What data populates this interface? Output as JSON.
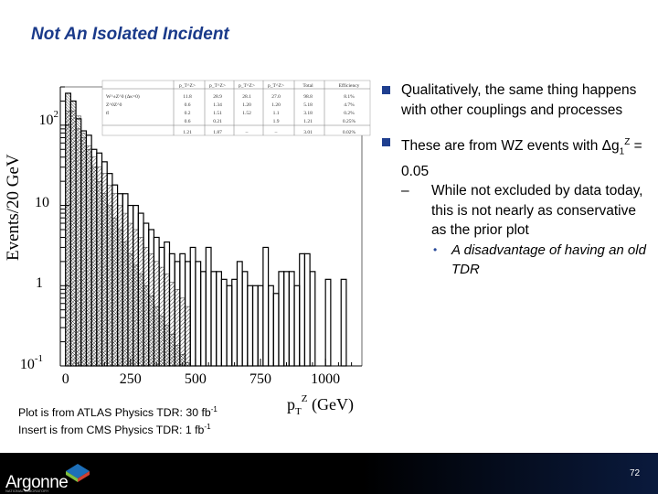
{
  "slide": {
    "title": "Not An Isolated Incident",
    "bullets": {
      "b1": "Qualitatively, the same thing happens with other couplings and processes",
      "b2_pre": "These are from WZ events with ",
      "b2_delta": "Δ",
      "b2_g": "g",
      "b2_sub": "1",
      "b2_sup": "Z",
      "b2_post": " = 0.05",
      "sub_dash": "–",
      "sub": "While not excluded by data today, this is not nearly as conservative as the prior plot",
      "subsub_dot": "•",
      "subsub": "A disadvantage of having an old TDR"
    },
    "footnote": {
      "line1": "Plot is from ATLAS Physics TDR: 30 fb",
      "line1_sup": "-1",
      "line2": "Insert is from CMS Physics TDR: 1 fb",
      "line2_sup": "-1"
    },
    "footer": {
      "logo": "Argonne",
      "logo_sub": "NATIONAL LABORATORY",
      "page": "72"
    },
    "colors": {
      "title": "#1a3a8a",
      "bullet": "#1f3f8f",
      "footer_bar": "#000000"
    }
  },
  "chart_data": {
    "type": "bar",
    "ylabel": "Events/20 GeV",
    "xlabel_main": "p",
    "xlabel_sub": "T",
    "xlabel_sup": "Z",
    "xlabel_unit": " (GeV)",
    "y_log": true,
    "ylim": [
      0.1,
      300
    ],
    "xlim": [
      -20,
      1140
    ],
    "x_ticks": [
      "0",
      "250",
      "500",
      "750",
      "1000"
    ],
    "x_tick_values": [
      0,
      250,
      500,
      750,
      1000
    ],
    "y_ticks": [
      {
        "base": "10",
        "exp": "-1",
        "value": 0.1
      },
      {
        "base": "1",
        "exp": "",
        "value": 1
      },
      {
        "base": "10",
        "exp": "",
        "value": 10
      },
      {
        "base": "10",
        "exp": "2",
        "value": 100
      }
    ],
    "bin_width": 20,
    "x_start": 0,
    "series": [
      {
        "values": [
          150,
          150,
          90,
          70,
          55,
          40,
          30,
          25,
          18,
          14,
          10,
          8,
          6,
          5,
          4,
          3,
          2.5,
          2,
          1.7,
          1.4,
          1.1,
          0.9,
          0.7,
          0.55
        ]
      },
      {
        "values": [
          250,
          200,
          130,
          80,
          50,
          30,
          20,
          14,
          10,
          7,
          5,
          3.5,
          2.5,
          1.8,
          1.4,
          1,
          0.75,
          0.55,
          0.42,
          0.32,
          0.25,
          0.18,
          0.14,
          0.11
        ]
      },
      {
        "values": [
          250,
          200,
          120,
          85,
          75,
          50,
          45,
          35,
          25,
          18,
          14,
          14,
          10,
          10,
          8,
          6,
          5,
          4,
          3,
          3.5,
          2.5,
          2,
          2.5,
          2,
          3,
          2,
          1.5,
          3,
          1.5,
          1.5,
          1.2,
          1,
          1.2,
          2,
          1.5,
          1,
          1,
          1,
          3,
          1,
          0.8,
          1.5,
          1.5,
          1.5,
          1,
          2.5,
          2.5,
          1.5,
          0.1,
          0.1,
          1.2,
          0.1,
          0.1,
          1.2,
          0.1,
          0.1,
          0.1
        ]
      }
    ],
    "insert_table": {
      "headers": [
        "",
        "p_T^Z>",
        "p_T^Z>",
        "p_T^Z>",
        "p_T^Z>",
        "Total",
        "Efficiency"
      ],
      "rows": [
        [
          "W^±Z^0 (Δκ=0)",
          "11.8",
          "28.9",
          "28.1",
          "27.0",
          "98.8",
          "8.1%"
        ],
        [
          "Z^0Z^0",
          "0.6",
          "1.34",
          "1.20",
          "1.20",
          "5.18",
          "4.7%"
        ],
        [
          "tt̄",
          "0.2",
          "1.51",
          "1.52",
          "1.1",
          "3.18",
          "0.2%"
        ],
        [
          "",
          "0.6",
          "0.21",
          "",
          "1.9",
          "1.21",
          "0.25%"
        ],
        [
          "",
          "1.21",
          "1.87",
          "–",
          "–",
          "3.01",
          "0.02%"
        ]
      ]
    }
  }
}
